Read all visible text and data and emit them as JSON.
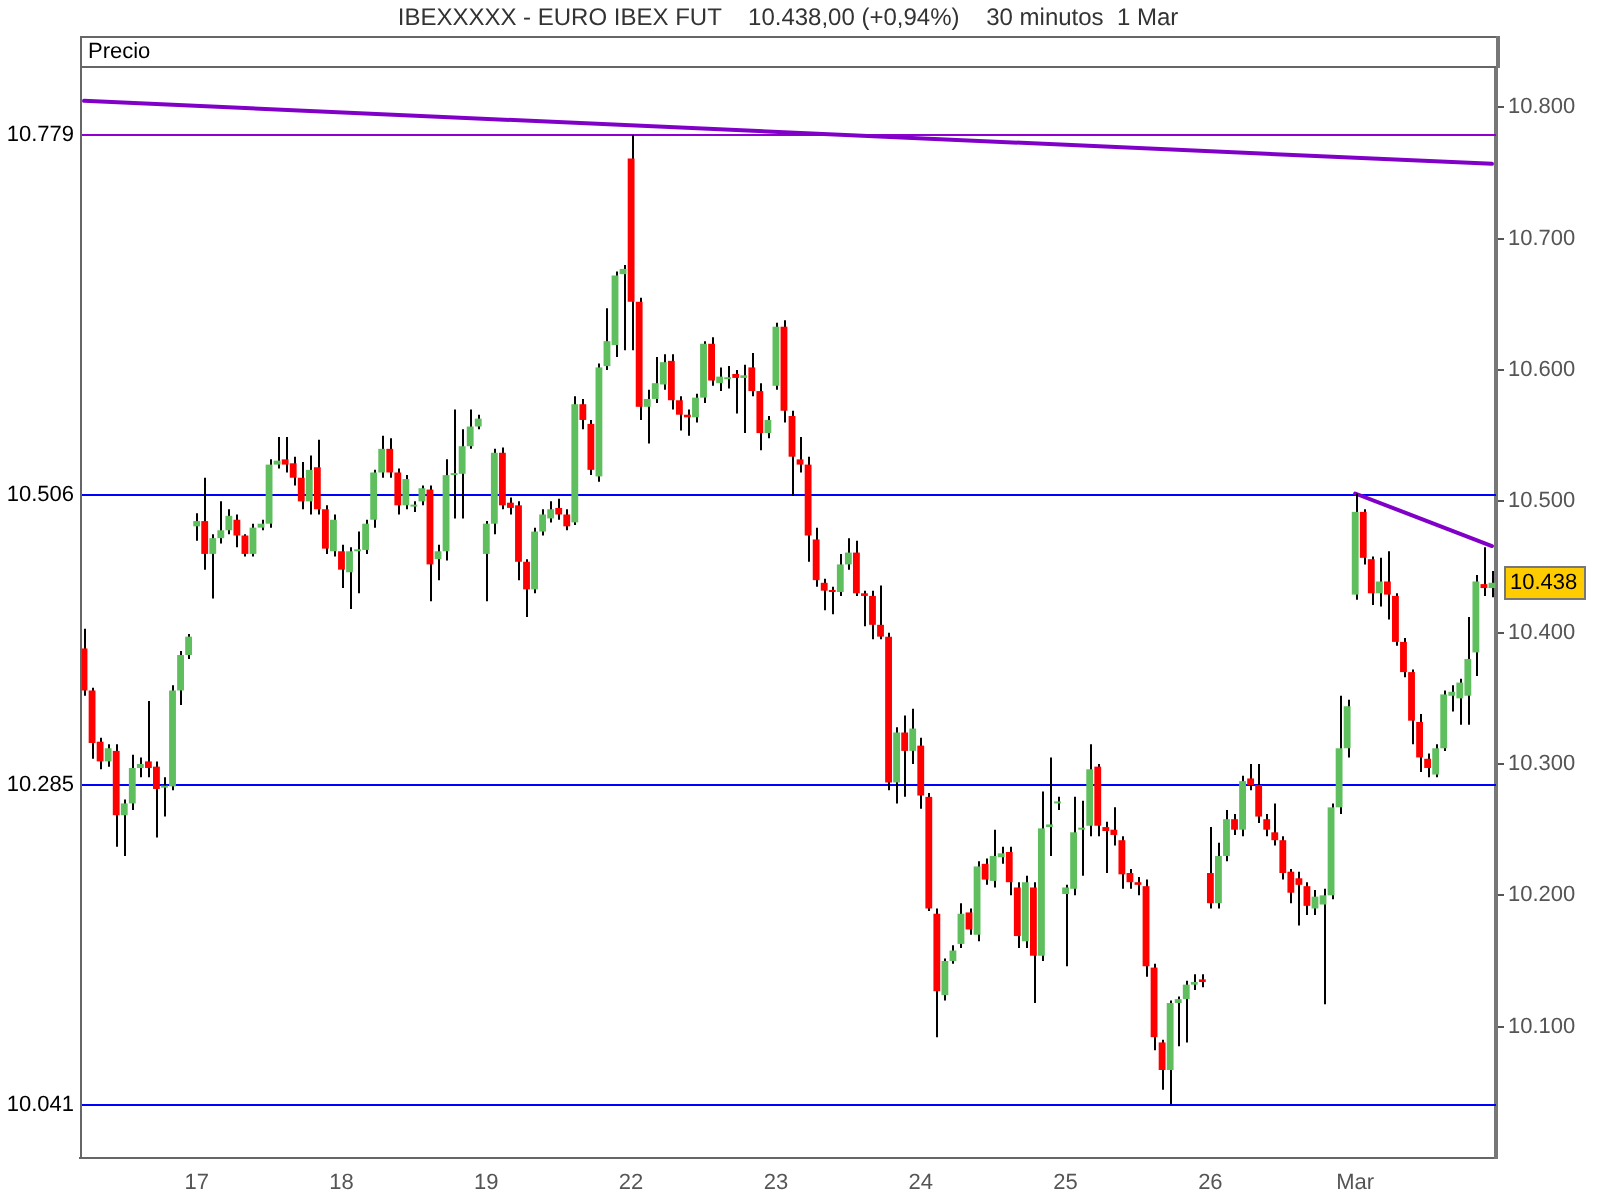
{
  "chart_data": {
    "type": "candlestick",
    "title": "IBEXXXXX - EURO IBEX FUT    10.438,00 (+0,94%)    30 minutos  1 Mar",
    "ylabel": "Precio",
    "categories": [
      null,
      null,
      null,
      null,
      null,
      null,
      null,
      null,
      null,
      null,
      null,
      null,
      null,
      null,
      "17",
      null,
      null,
      null,
      null,
      null,
      null,
      null,
      null,
      null,
      null,
      null,
      null,
      null,
      null,
      null,
      null,
      null,
      "18",
      null,
      null,
      null,
      null,
      null,
      null,
      null,
      null,
      null,
      null,
      null,
      null,
      null,
      null,
      null,
      null,
      null,
      "19",
      null,
      null,
      null,
      null,
      null,
      null,
      null,
      null,
      null,
      null,
      null,
      null,
      null,
      null,
      null,
      null,
      null,
      "22",
      null,
      null,
      null,
      null,
      null,
      null,
      null,
      null,
      null,
      null,
      null,
      null,
      null,
      null,
      null,
      null,
      null,
      "23",
      null,
      null,
      null,
      null,
      null,
      null,
      null,
      null,
      null,
      null,
      null,
      null,
      null,
      null,
      null,
      null,
      null,
      "24",
      null,
      null,
      null,
      null,
      null,
      null,
      null,
      null,
      null,
      null,
      null,
      null,
      null,
      null,
      null,
      null,
      null,
      "25",
      null,
      null,
      null,
      null,
      null,
      null,
      null,
      null,
      null,
      null,
      null,
      null,
      null,
      null,
      null,
      null,
      null,
      "26",
      null,
      null,
      null,
      null,
      null,
      null,
      null,
      null,
      null,
      null,
      null,
      null,
      null,
      null,
      null,
      null,
      null,
      "Mar",
      null,
      null,
      null,
      null,
      null,
      null,
      null,
      null,
      null,
      null,
      null,
      null,
      null,
      null,
      null,
      null,
      null
    ],
    "series": [
      {
        "type": "line",
        "color": "#8000c8",
        "values": [
          10805,
          null,
          null,
          null,
          null,
          null,
          null,
          null,
          null,
          null,
          null,
          null,
          null,
          null,
          null,
          null,
          null,
          null,
          null,
          null,
          null,
          null,
          null,
          null,
          null,
          null,
          null,
          null,
          null,
          null,
          null,
          null,
          null,
          null,
          null,
          null,
          null,
          null,
          null,
          null,
          null,
          null,
          null,
          null,
          null,
          null,
          null,
          null,
          null,
          null,
          null,
          null,
          null,
          null,
          null,
          null,
          null,
          null,
          null,
          null,
          null,
          null,
          null,
          null,
          null,
          null,
          null,
          null,
          null,
          null,
          null,
          null,
          null,
          null,
          null,
          null,
          null,
          null,
          null,
          null,
          null,
          null,
          null,
          null,
          null,
          null,
          null,
          null,
          null,
          null,
          null,
          null,
          null,
          null,
          null,
          null,
          null,
          null,
          null,
          null,
          null,
          null,
          null,
          null,
          null,
          null,
          null,
          null,
          null,
          null,
          null,
          null,
          null,
          null,
          null,
          null,
          null,
          null,
          null,
          null,
          null,
          null,
          null,
          null,
          null,
          null,
          null,
          null,
          null,
          null,
          null,
          null,
          null,
          null,
          null,
          null,
          null,
          null,
          null,
          null,
          null,
          null,
          null,
          null,
          null,
          null,
          null,
          null,
          null,
          null,
          null,
          null,
          null,
          null,
          null,
          null,
          null,
          null,
          null,
          null,
          null,
          null,
          null,
          null,
          null,
          null,
          null,
          null,
          null,
          null,
          null,
          null,
          null,
          null,
          null,
          10757
        ]
      },
      {
        "type": "line",
        "color": "#8000c8",
        "values": [
          null,
          null,
          null,
          null,
          null,
          null,
          null,
          null,
          null,
          null,
          null,
          null,
          null,
          null,
          null,
          null,
          null,
          null,
          null,
          null,
          null,
          null,
          null,
          null,
          null,
          null,
          null,
          null,
          null,
          null,
          null,
          null,
          null,
          null,
          null,
          null,
          null,
          null,
          null,
          null,
          null,
          null,
          null,
          null,
          null,
          null,
          null,
          null,
          null,
          null,
          null,
          null,
          null,
          null,
          null,
          null,
          null,
          null,
          null,
          null,
          null,
          null,
          null,
          null,
          null,
          null,
          null,
          null,
          null,
          null,
          null,
          null,
          null,
          null,
          null,
          null,
          null,
          null,
          null,
          null,
          null,
          null,
          null,
          null,
          null,
          null,
          null,
          null,
          null,
          null,
          null,
          null,
          null,
          null,
          null,
          null,
          null,
          null,
          null,
          null,
          null,
          null,
          null,
          null,
          null,
          null,
          null,
          null,
          null,
          null,
          null,
          null,
          null,
          null,
          null,
          null,
          null,
          null,
          null,
          null,
          null,
          null,
          null,
          null,
          null,
          null,
          null,
          null,
          null,
          null,
          null,
          null,
          null,
          null,
          null,
          null,
          null,
          null,
          null,
          null,
          null,
          null,
          null,
          null,
          null,
          null,
          null,
          null,
          null,
          null,
          null,
          null,
          null,
          null,
          null,
          null,
          null,
          null,
          10506,
          null,
          null,
          null,
          null,
          null,
          null,
          null,
          null,
          null,
          null,
          null,
          null,
          null,
          null,
          null,
          null,
          10466
        ]
      },
      {
        "ohlc": [
          [
            10388,
            10403,
            10352,
            10356
          ],
          [
            10356,
            10358,
            10304,
            10316
          ],
          [
            10317,
            10320,
            10296,
            10302
          ],
          [
            10302,
            10315,
            10298,
            10312
          ],
          [
            10310,
            10315,
            10237,
            10261
          ],
          [
            10261,
            10273,
            10230,
            10270
          ],
          [
            10270,
            10307,
            10265,
            10297
          ],
          [
            10297,
            10305,
            10290,
            10300
          ],
          [
            10302,
            10348,
            10290,
            10297
          ],
          [
            10298,
            10302,
            10244,
            10281
          ],
          [
            10282,
            10290,
            10260,
            10283
          ],
          [
            10283,
            10360,
            10280,
            10356
          ],
          [
            10356,
            10386,
            10345,
            10383
          ],
          [
            10383,
            10399,
            10380,
            10397
          ],
          [
            10481,
            10491,
            10470,
            10485
          ],
          [
            10485,
            10518,
            10448,
            10460
          ],
          [
            10460,
            10475,
            10426,
            10472
          ],
          [
            10472,
            10500,
            10468,
            10478
          ],
          [
            10478,
            10494,
            10475,
            10489
          ],
          [
            10486,
            10490,
            10465,
            10474
          ],
          [
            10474,
            10475,
            10458,
            10460
          ],
          [
            10460,
            10483,
            10458,
            10480
          ],
          [
            10480,
            10486,
            10478,
            10483
          ],
          [
            10483,
            10532,
            10480,
            10528
          ],
          [
            10528,
            10549,
            10525,
            10531
          ],
          [
            10532,
            10549,
            10522,
            10528
          ],
          [
            10529,
            10534,
            10512,
            10518
          ],
          [
            10518,
            10530,
            10494,
            10500
          ],
          [
            10500,
            10535,
            10490,
            10524
          ],
          [
            10526,
            10547,
            10490,
            10494
          ],
          [
            10494,
            10497,
            10460,
            10464
          ],
          [
            10462,
            10490,
            10458,
            10486
          ],
          [
            10462,
            10467,
            10434,
            10448
          ],
          [
            10446,
            10465,
            10418,
            10462
          ],
          [
            10462,
            10477,
            10430,
            10463
          ],
          [
            10463,
            10486,
            10460,
            10483
          ],
          [
            10486,
            10524,
            10480,
            10522
          ],
          [
            10522,
            10550,
            10518,
            10540
          ],
          [
            10540,
            10548,
            10518,
            10522
          ],
          [
            10522,
            10525,
            10490,
            10497
          ],
          [
            10497,
            10520,
            10494,
            10517
          ],
          [
            10496,
            10500,
            10492,
            10497
          ],
          [
            10500,
            10512,
            10497,
            10510
          ],
          [
            10509,
            10512,
            10424,
            10452
          ],
          [
            10456,
            10467,
            10440,
            10462
          ],
          [
            10462,
            10532,
            10455,
            10520
          ],
          [
            10520,
            10570,
            10487,
            10521
          ],
          [
            10521,
            10555,
            10487,
            10542
          ],
          [
            10542,
            10570,
            10540,
            10557
          ],
          [
            10557,
            10566,
            10555,
            10563
          ],
          [
            10460,
            10485,
            10424,
            10483
          ],
          [
            10483,
            10540,
            10475,
            10537
          ],
          [
            10537,
            10541,
            10494,
            10497
          ],
          [
            10499,
            10503,
            10490,
            10495
          ],
          [
            10497,
            10500,
            10440,
            10454
          ],
          [
            10454,
            10456,
            10412,
            10433
          ],
          [
            10433,
            10480,
            10430,
            10477
          ],
          [
            10477,
            10494,
            10474,
            10490
          ],
          [
            10487,
            10500,
            10484,
            10494
          ],
          [
            10495,
            10502,
            10486,
            10490
          ],
          [
            10490,
            10494,
            10478,
            10481
          ],
          [
            10484,
            10580,
            10482,
            10574
          ],
          [
            10574,
            10578,
            10555,
            10562
          ],
          [
            10559,
            10562,
            10520,
            10524
          ],
          [
            10519,
            10605,
            10515,
            10602
          ],
          [
            10603,
            10647,
            10600,
            10622
          ],
          [
            10619,
            10675,
            10610,
            10672
          ],
          [
            10673,
            10680,
            10615,
            10677
          ],
          [
            10761,
            10779,
            10615,
            10652
          ],
          [
            10652,
            10655,
            10562,
            10572
          ],
          [
            10572,
            10585,
            10544,
            10578
          ],
          [
            10578,
            10610,
            10575,
            10590
          ],
          [
            10589,
            10612,
            10585,
            10606
          ],
          [
            10607,
            10612,
            10570,
            10577
          ],
          [
            10577,
            10580,
            10554,
            10566
          ],
          [
            10566,
            10570,
            10550,
            10564
          ],
          [
            10564,
            10582,
            10560,
            10579
          ],
          [
            10579,
            10622,
            10575,
            10620
          ],
          [
            10620,
            10625,
            10588,
            10592
          ],
          [
            10590,
            10602,
            10584,
            10595
          ],
          [
            10593,
            10603,
            10586,
            10594
          ],
          [
            10597,
            10600,
            10567,
            10594
          ],
          [
            10594,
            10604,
            10552,
            10596
          ],
          [
            10602,
            10613,
            10580,
            10584
          ],
          [
            10584,
            10590,
            10539,
            10552
          ],
          [
            10552,
            10565,
            10548,
            10562
          ],
          [
            10588,
            10636,
            10585,
            10633
          ],
          [
            10633,
            10638,
            10560,
            10569
          ],
          [
            10565,
            10569,
            10504,
            10534
          ],
          [
            10532,
            10549,
            10522,
            10528
          ],
          [
            10528,
            10534,
            10454,
            10474
          ],
          [
            10471,
            10480,
            10435,
            10440
          ],
          [
            10438,
            10441,
            10417,
            10432
          ],
          [
            10432,
            10435,
            10414,
            10431
          ],
          [
            10431,
            10460,
            10428,
            10452
          ],
          [
            10452,
            10472,
            10448,
            10461
          ],
          [
            10461,
            10470,
            10428,
            10430
          ],
          [
            10430,
            10432,
            10405,
            10428
          ],
          [
            10428,
            10432,
            10395,
            10406
          ],
          [
            10406,
            10436,
            10395,
            10397
          ],
          [
            10397,
            10400,
            10280,
            10286
          ],
          [
            10286,
            10328,
            10270,
            10324
          ],
          [
            10324,
            10337,
            10275,
            10310
          ],
          [
            10310,
            10342,
            10300,
            10327
          ],
          [
            10314,
            10320,
            10266,
            10276
          ],
          [
            10275,
            10278,
            10188,
            10190
          ],
          [
            10186,
            10190,
            10092,
            10127
          ],
          [
            10124,
            10152,
            10120,
            10150
          ],
          [
            10150,
            10162,
            10148,
            10158
          ],
          [
            10163,
            10194,
            10160,
            10186
          ],
          [
            10187,
            10190,
            10170,
            10174
          ],
          [
            10170,
            10226,
            10165,
            10222
          ],
          [
            10224,
            10228,
            10208,
            10212
          ],
          [
            10211,
            10250,
            10206,
            10230
          ],
          [
            10229,
            10237,
            10224,
            10232
          ],
          [
            10233,
            10237,
            10200,
            10210
          ],
          [
            10206,
            10210,
            10160,
            10169
          ],
          [
            10165,
            10215,
            10160,
            10210
          ],
          [
            10206,
            10210,
            10118,
            10154
          ],
          [
            10154,
            10279,
            10150,
            10251
          ],
          [
            10252,
            10305,
            10230,
            10254
          ],
          [
            10270,
            10275,
            10265,
            10270
          ],
          [
            10201,
            10208,
            10146,
            10206
          ],
          [
            10205,
            10275,
            10200,
            10248
          ],
          [
            10250,
            10272,
            10215,
            10251
          ],
          [
            10253,
            10315,
            10245,
            10296
          ],
          [
            10298,
            10300,
            10245,
            10253
          ],
          [
            10252,
            10256,
            10217,
            10249
          ],
          [
            10250,
            10267,
            10238,
            10246
          ],
          [
            10242,
            10245,
            10205,
            10216
          ],
          [
            10217,
            10220,
            10205,
            10210
          ],
          [
            10210,
            10214,
            10200,
            10208
          ],
          [
            10207,
            10212,
            10138,
            10146
          ],
          [
            10145,
            10148,
            10082,
            10092
          ],
          [
            10088,
            10090,
            10052,
            10067
          ],
          [
            10067,
            10120,
            10041,
            10118
          ],
          [
            10118,
            10123,
            10085,
            10121
          ],
          [
            10121,
            10135,
            10088,
            10132
          ],
          [
            10132,
            10140,
            10128,
            10134
          ],
          [
            10136,
            10140,
            10130,
            10134
          ],
          [
            10217,
            10252,
            10190,
            10194
          ],
          [
            10194,
            10240,
            10190,
            10230
          ],
          [
            10230,
            10265,
            10226,
            10258
          ],
          [
            10258,
            10262,
            10246,
            10250
          ],
          [
            10250,
            10291,
            10245,
            10287
          ],
          [
            10289,
            10300,
            10280,
            10284
          ],
          [
            10284,
            10300,
            10255,
            10260
          ],
          [
            10258,
            10262,
            10245,
            10250
          ],
          [
            10248,
            10270,
            10238,
            10242
          ],
          [
            10242,
            10245,
            10212,
            10217
          ],
          [
            10218,
            10220,
            10194,
            10202
          ],
          [
            10213,
            10218,
            10177,
            10208
          ],
          [
            10207,
            10210,
            10185,
            10192
          ],
          [
            10190,
            10204,
            10185,
            10199
          ],
          [
            10193,
            10205,
            10117,
            10200
          ],
          [
            10200,
            10270,
            10197,
            10267
          ],
          [
            10267,
            10352,
            10262,
            10312
          ],
          [
            10312,
            10349,
            10305,
            10344
          ],
          [
            10429,
            10506,
            10425,
            10492
          ],
          [
            10492,
            10494,
            10452,
            10457
          ],
          [
            10456,
            10458,
            10421,
            10430
          ],
          [
            10430,
            10457,
            10420,
            10439
          ],
          [
            10439,
            10462,
            10410,
            10429
          ],
          [
            10428,
            10430,
            10390,
            10393
          ],
          [
            10393,
            10396,
            10366,
            10370
          ],
          [
            10370,
            10372,
            10315,
            10333
          ],
          [
            10332,
            10338,
            10294,
            10305
          ],
          [
            10304,
            10308,
            10290,
            10297
          ],
          [
            10292,
            10315,
            10290,
            10312
          ],
          [
            10312,
            10356,
            10310,
            10353
          ],
          [
            10352,
            10360,
            10340,
            10355
          ],
          [
            10350,
            10365,
            10330,
            10362
          ],
          [
            10352,
            10412,
            10330,
            10380
          ],
          [
            10385,
            10444,
            10367,
            10439
          ],
          [
            10437,
            10465,
            10428,
            10434
          ],
          [
            10434,
            10447,
            10427,
            10438
          ]
        ],
        "colors": [
          "#ff0000",
          "#ff0000",
          "#ff0000",
          "#5fbf5f",
          "#ff0000",
          "#5fbf5f",
          "#5fbf5f",
          "#5fbf5f",
          "#ff0000",
          "#ff0000",
          "#5fbf5f",
          "#5fbf5f",
          "#5fbf5f",
          "#5fbf5f",
          "#5fbf5f",
          "#ff0000",
          "#5fbf5f",
          "#5fbf5f",
          "#5fbf5f",
          "#ff0000",
          "#ff0000",
          "#5fbf5f",
          "#5fbf5f",
          "#5fbf5f",
          "#5fbf5f",
          "#ff0000",
          "#ff0000",
          "#ff0000",
          "#5fbf5f",
          "#ff0000",
          "#ff0000",
          "#5fbf5f",
          "#ff0000",
          "#5fbf5f",
          "#5fbf5f",
          "#5fbf5f",
          "#5fbf5f",
          "#5fbf5f",
          "#ff0000",
          "#ff0000",
          "#5fbf5f",
          "#5fbf5f",
          "#5fbf5f",
          "#ff0000",
          "#5fbf5f",
          "#5fbf5f",
          "#5fbf5f",
          "#5fbf5f",
          "#5fbf5f",
          "#5fbf5f",
          "#5fbf5f",
          "#5fbf5f",
          "#ff0000",
          "#ff0000",
          "#ff0000",
          "#ff0000",
          "#5fbf5f",
          "#5fbf5f",
          "#5fbf5f",
          "#ff0000",
          "#ff0000",
          "#5fbf5f",
          "#ff0000",
          "#ff0000",
          "#5fbf5f",
          "#5fbf5f",
          "#5fbf5f",
          "#5fbf5f",
          "#ff0000",
          "#ff0000",
          "#5fbf5f",
          "#5fbf5f",
          "#5fbf5f",
          "#ff0000",
          "#ff0000",
          "#ff0000",
          "#5fbf5f",
          "#5fbf5f",
          "#ff0000",
          "#5fbf5f",
          "#5fbf5f",
          "#ff0000",
          "#5fbf5f",
          "#ff0000",
          "#ff0000",
          "#5fbf5f",
          "#5fbf5f",
          "#ff0000",
          "#ff0000",
          "#ff0000",
          "#ff0000",
          "#ff0000",
          "#ff0000",
          "#ff0000",
          "#5fbf5f",
          "#5fbf5f",
          "#ff0000",
          "#ff0000",
          "#ff0000",
          "#ff0000",
          "#ff0000",
          "#5fbf5f",
          "#ff0000",
          "#5fbf5f",
          "#ff0000",
          "#ff0000",
          "#ff0000",
          "#5fbf5f",
          "#5fbf5f",
          "#5fbf5f",
          "#ff0000",
          "#5fbf5f",
          "#ff0000",
          "#5fbf5f",
          "#5fbf5f",
          "#ff0000",
          "#ff0000",
          "#5fbf5f",
          "#ff0000",
          "#5fbf5f",
          "#5fbf5f",
          "#5fbf5f",
          "#5fbf5f",
          "#5fbf5f",
          "#5fbf5f",
          "#5fbf5f",
          "#ff0000",
          "#ff0000",
          "#ff0000",
          "#ff0000",
          "#ff0000",
          "#ff0000",
          "#ff0000",
          "#ff0000",
          "#ff0000",
          "#5fbf5f",
          "#5fbf5f",
          "#5fbf5f",
          "#5fbf5f",
          "#ff0000",
          "#ff0000",
          "#5fbf5f",
          "#5fbf5f",
          "#ff0000",
          "#5fbf5f",
          "#ff0000",
          "#ff0000",
          "#ff0000",
          "#ff0000",
          "#ff0000",
          "#ff0000",
          "#ff0000",
          "#ff0000",
          "#5fbf5f",
          "#5fbf5f",
          "#5fbf5f",
          "#5fbf5f",
          "#5fbf5f",
          "#5fbf5f",
          "#ff0000",
          "#ff0000",
          "#5fbf5f",
          "#ff0000",
          "#ff0000",
          "#ff0000",
          "#ff0000",
          "#ff0000",
          "#ff0000",
          "#5fbf5f",
          "#5fbf5f",
          "#5fbf5f",
          "#5fbf5f",
          "#5fbf5f",
          "#5fbf5f",
          "#ff0000",
          "#5fbf5f"
        ]
      }
    ],
    "ylim": [
      10000,
      10830
    ],
    "yticks": [
      {
        "value": 10100,
        "label": "10.100"
      },
      {
        "value": 10200,
        "label": "10.200"
      },
      {
        "value": 10300,
        "label": "10.300"
      },
      {
        "value": 10400,
        "label": "10.400"
      },
      {
        "value": 10500,
        "label": "10.500"
      },
      {
        "value": 10600,
        "label": "10.600"
      },
      {
        "value": 10700,
        "label": "10.700"
      },
      {
        "value": 10800,
        "label": "10.800"
      }
    ],
    "ref_lines": [
      {
        "axis": "y",
        "value": 10779,
        "label": "10.779",
        "color": "#9000d0"
      },
      {
        "axis": "y",
        "value": 10506,
        "label": "10.506",
        "color": "#0000ff"
      },
      {
        "axis": "y",
        "value": 10285,
        "label": "10.285",
        "color": "#0000ff"
      },
      {
        "axis": "y",
        "value": 10041,
        "label": "10.041",
        "color": "#0000ff"
      }
    ],
    "annotations": [
      "10.438"
    ]
  }
}
